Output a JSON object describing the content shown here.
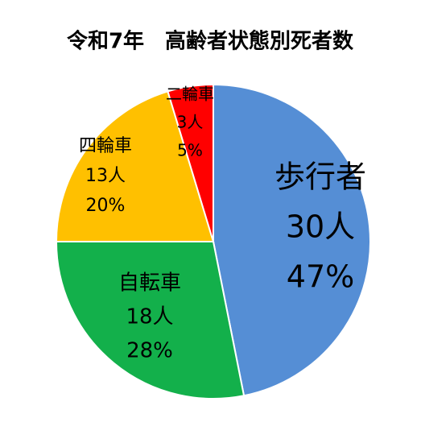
{
  "chart_data": {
    "type": "pie",
    "title": "令和7年　高齢者状態別死者数",
    "categories": [
      "歩行者",
      "自転車",
      "四輪車",
      "二輪車"
    ],
    "values": [
      30,
      18,
      13,
      3
    ],
    "value_labels": [
      "30人",
      "18人",
      "13人",
      "3人"
    ],
    "percent_labels": [
      "47%",
      "28%",
      "20%",
      "5%"
    ],
    "colors": [
      "#558ed5",
      "#13b04b",
      "#ffc000",
      "#ff0000"
    ]
  }
}
